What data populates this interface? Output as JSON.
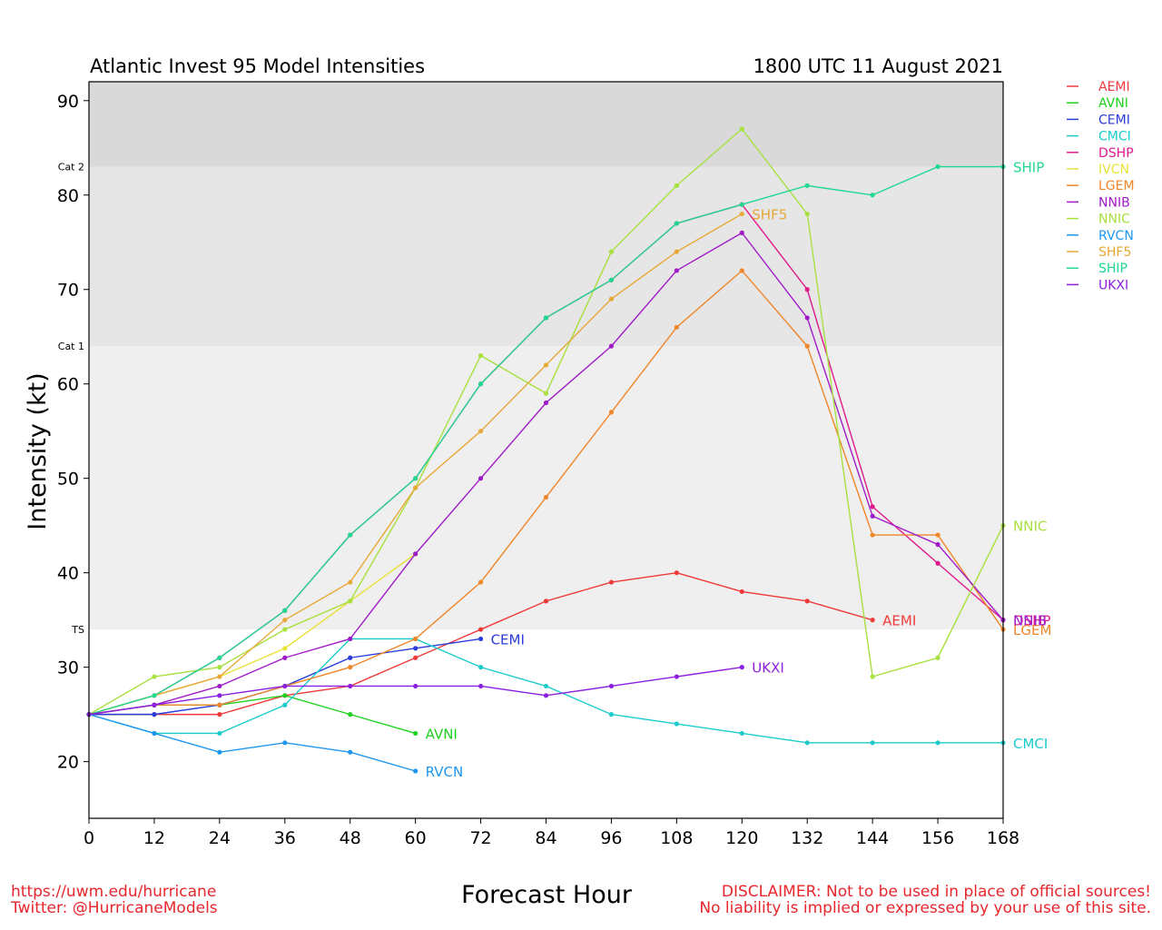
{
  "chart_data": {
    "type": "line",
    "title": "Atlantic Invest 95 Model Intensities",
    "subtitle": "1800 UTC 11 August 2021",
    "xlabel": "Forecast Hour",
    "ylabel": "Intensity (kt)",
    "xlim": [
      0,
      168
    ],
    "ylim": [
      14,
      92
    ],
    "xticks": [
      0,
      12,
      24,
      36,
      48,
      60,
      72,
      84,
      96,
      108,
      120,
      132,
      144,
      156,
      168
    ],
    "yticks": [
      20,
      30,
      40,
      50,
      60,
      70,
      80,
      90
    ],
    "category_bands": [
      {
        "label": "TS",
        "from": 34,
        "to": 64,
        "color": "#efefef"
      },
      {
        "label": "Cat 1",
        "from": 64,
        "to": 83,
        "color": "#e6e6e6"
      },
      {
        "label": "Cat 2",
        "from": 83,
        "to": 96,
        "color": "#d9d9d9"
      }
    ],
    "legend_placement": "right, outside plot",
    "series": [
      {
        "name": "AEMI",
        "color": "#f03a3a",
        "label": "AEMI",
        "x": [
          0,
          12,
          24,
          36,
          48,
          60,
          72,
          84,
          96,
          108,
          120,
          132,
          144
        ],
        "y": [
          25,
          25,
          25,
          27,
          28,
          31,
          34,
          37,
          39,
          40,
          38,
          37,
          35
        ]
      },
      {
        "name": "AVNI",
        "color": "#1fd11f",
        "label": "AVNI",
        "x": [
          0,
          12,
          24,
          36,
          48,
          60
        ],
        "y": [
          25,
          26,
          26,
          27,
          25,
          23
        ]
      },
      {
        "name": "CEMI",
        "color": "#2a3cd9",
        "label": "CEMI",
        "x": [
          0,
          12,
          24,
          36,
          48,
          60,
          72
        ],
        "y": [
          25,
          25,
          26,
          28,
          31,
          32,
          33
        ]
      },
      {
        "name": "CMCI",
        "color": "#1ccccc",
        "label": "CMCI",
        "x": [
          0,
          12,
          24,
          36,
          48,
          60,
          72,
          84,
          96,
          108,
          120,
          132,
          144,
          156,
          168
        ],
        "y": [
          25,
          23,
          23,
          26,
          33,
          33,
          30,
          28,
          25,
          24,
          23,
          22,
          22,
          22,
          22
        ]
      },
      {
        "name": "DSHP",
        "color": "#e01a8c",
        "label": "DSHP",
        "x": [
          0,
          12,
          24,
          36,
          48,
          60,
          72,
          84,
          96,
          108,
          120,
          132,
          144,
          156,
          168
        ],
        "y": [
          25,
          27,
          31,
          36,
          44,
          50,
          60,
          67,
          71,
          77,
          79,
          70,
          47,
          41,
          35
        ]
      },
      {
        "name": "IVCN",
        "color": "#e8e23a",
        "label": "",
        "x": [
          0,
          12,
          24,
          36,
          48,
          60
        ],
        "y": [
          25,
          27,
          29,
          32,
          37,
          42
        ]
      },
      {
        "name": "LGEM",
        "color": "#f0862a",
        "label": "LGEM",
        "x": [
          0,
          12,
          24,
          36,
          48,
          60,
          72,
          84,
          96,
          108,
          120,
          132,
          144,
          156,
          168
        ],
        "y": [
          25,
          26,
          26,
          28,
          30,
          33,
          39,
          48,
          57,
          66,
          72,
          64,
          44,
          44,
          34
        ]
      },
      {
        "name": "NNIB",
        "color": "#a01cc8",
        "label": "NNIB",
        "x": [
          0,
          12,
          24,
          36,
          48,
          60,
          72,
          84,
          96,
          108,
          120,
          132,
          144,
          156,
          168
        ],
        "y": [
          25,
          26,
          28,
          31,
          33,
          42,
          50,
          58,
          64,
          72,
          76,
          67,
          46,
          43,
          35
        ]
      },
      {
        "name": "NNIC",
        "color": "#a8e040",
        "label": "NNIC",
        "x": [
          0,
          12,
          24,
          36,
          48,
          60,
          72,
          84,
          96,
          108,
          120,
          132,
          144,
          156,
          168
        ],
        "y": [
          25,
          29,
          30,
          34,
          37,
          49,
          63,
          59,
          74,
          81,
          87,
          78,
          29,
          31,
          45
        ]
      },
      {
        "name": "RVCN",
        "color": "#1e96f0",
        "label": "RVCN",
        "x": [
          0,
          12,
          24,
          36,
          48,
          60
        ],
        "y": [
          25,
          23,
          21,
          22,
          21,
          19
        ]
      },
      {
        "name": "SHF5",
        "color": "#e8a838",
        "label": "SHF5",
        "x": [
          0,
          12,
          24,
          36,
          48,
          60,
          72,
          84,
          96,
          108,
          120
        ],
        "y": [
          25,
          27,
          29,
          35,
          39,
          49,
          55,
          62,
          69,
          74,
          78
        ]
      },
      {
        "name": "SHIP",
        "color": "#20d890",
        "label": "SHIP",
        "x": [
          0,
          12,
          24,
          36,
          48,
          60,
          72,
          84,
          96,
          108,
          120,
          132,
          144,
          156,
          168
        ],
        "y": [
          25,
          27,
          31,
          36,
          44,
          50,
          60,
          67,
          71,
          77,
          79,
          81,
          80,
          83,
          83
        ]
      },
      {
        "name": "UKXI",
        "color": "#8c1ee0",
        "label": "UKXI",
        "x": [
          0,
          12,
          24,
          36,
          48,
          60,
          72,
          84,
          96,
          108,
          120
        ],
        "y": [
          25,
          26,
          27,
          28,
          28,
          28,
          28,
          27,
          28,
          29,
          30
        ]
      }
    ]
  },
  "footer": {
    "url": "https://uwm.edu/hurricane",
    "twitter": "Twitter: @HurricaneModels",
    "disclaimer_1": "DISCLAIMER: Not to be used in place of official sources!",
    "disclaimer_2": "No liability is implied or expressed by your use of this site."
  }
}
